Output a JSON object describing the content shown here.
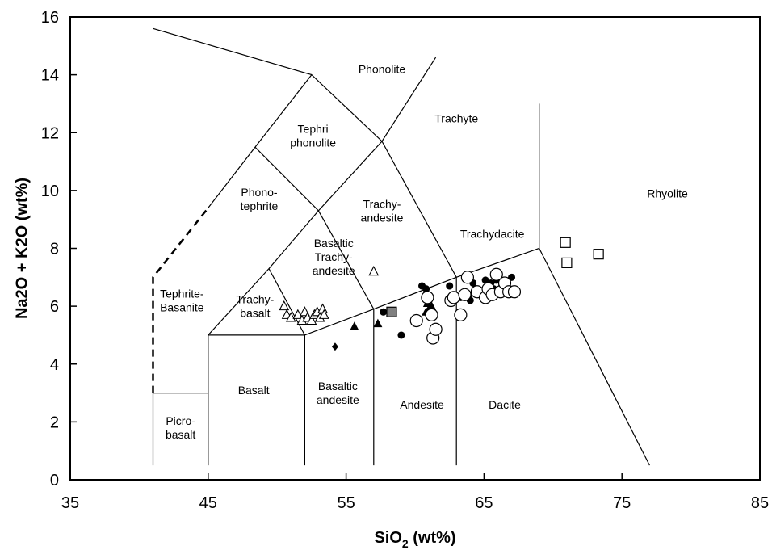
{
  "chart_data": {
    "type": "scatter",
    "xlabel": "SiO",
    "xlabel_sub": "2",
    "xlabel_suffix": " (wt%)",
    "ylabel": "Na2O + K2O (wt%)",
    "xlim": [
      35,
      85
    ],
    "ylim": [
      0,
      16
    ],
    "grid": false,
    "x_ticks": [
      35,
      45,
      55,
      65,
      75,
      85
    ],
    "y_ticks": [
      0,
      2,
      4,
      6,
      8,
      10,
      12,
      14,
      16
    ],
    "field_boundaries": [
      {
        "dashed": false,
        "points": [
          [
            41,
            0.5
          ],
          [
            41,
            3
          ],
          [
            45,
            3
          ]
        ]
      },
      {
        "dashed": true,
        "points": [
          [
            41,
            3
          ],
          [
            41,
            7
          ],
          [
            45,
            9.4
          ]
        ]
      },
      {
        "dashed": false,
        "points": [
          [
            45,
            9.4
          ],
          [
            48.4,
            11.5
          ],
          [
            52.5,
            14
          ],
          [
            57.6,
            11.7
          ],
          [
            63,
            7
          ],
          [
            69,
            8
          ],
          [
            69,
            13
          ]
        ]
      },
      {
        "dashed": false,
        "points": [
          [
            45,
            0.5
          ],
          [
            45,
            5
          ],
          [
            49.4,
            7.3
          ],
          [
            53,
            9.3
          ],
          [
            57.6,
            11.7
          ],
          [
            61.5,
            14.6
          ]
        ]
      },
      {
        "dashed": false,
        "points": [
          [
            45,
            5
          ],
          [
            52,
            5
          ],
          [
            57,
            5.9
          ],
          [
            63,
            7
          ]
        ]
      },
      {
        "dashed": false,
        "points": [
          [
            52,
            0.5
          ],
          [
            52,
            5
          ]
        ]
      },
      {
        "dashed": false,
        "points": [
          [
            57,
            0.5
          ],
          [
            57,
            5.9
          ]
        ]
      },
      {
        "dashed": false,
        "points": [
          [
            63,
            0.5
          ],
          [
            63,
            7
          ]
        ]
      },
      {
        "dashed": false,
        "points": [
          [
            49.4,
            7.3
          ],
          [
            52,
            5
          ]
        ]
      },
      {
        "dashed": false,
        "points": [
          [
            53,
            9.3
          ],
          [
            57,
            5.9
          ]
        ]
      },
      {
        "dashed": false,
        "points": [
          [
            48.4,
            11.5
          ],
          [
            53,
            9.3
          ]
        ]
      },
      {
        "dashed": false,
        "points": [
          [
            41,
            15.6
          ],
          [
            52.5,
            14
          ]
        ]
      },
      {
        "dashed": false,
        "points": [
          [
            69,
            8
          ],
          [
            77,
            0.5
          ]
        ]
      }
    ],
    "field_labels": [
      {
        "lines": [
          "Phonolite"
        ],
        "x": 57.6,
        "y": 14.2
      },
      {
        "lines": [
          "Trachyte"
        ],
        "x": 63,
        "y": 12.5
      },
      {
        "lines": [
          "Tephri",
          "phonolite"
        ],
        "x": 52.6,
        "y": 11.9
      },
      {
        "lines": [
          "Rhyolite"
        ],
        "x": 78.3,
        "y": 9.9
      },
      {
        "lines": [
          "Phono-",
          "tephrite"
        ],
        "x": 48.7,
        "y": 9.7
      },
      {
        "lines": [
          "Trachy-",
          "andesite"
        ],
        "x": 57.6,
        "y": 9.3
      },
      {
        "lines": [
          "Trachydacite"
        ],
        "x": 65.6,
        "y": 8.5
      },
      {
        "lines": [
          "Basaltic",
          "Trachy-",
          "andesite"
        ],
        "x": 54.1,
        "y": 7.7
      },
      {
        "lines": [
          "Tephrite-",
          "Basanite"
        ],
        "x": 43.1,
        "y": 6.2
      },
      {
        "lines": [
          "Trachy-",
          "basalt"
        ],
        "x": 48.4,
        "y": 6.0
      },
      {
        "lines": [
          "Basalt"
        ],
        "x": 48.3,
        "y": 3.1
      },
      {
        "lines": [
          "Basaltic",
          "andesite"
        ],
        "x": 54.4,
        "y": 3.0
      },
      {
        "lines": [
          "Andesite"
        ],
        "x": 60.5,
        "y": 2.6
      },
      {
        "lines": [
          "Dacite"
        ],
        "x": 66.5,
        "y": 2.6
      },
      {
        "lines": [
          "Picro-",
          "basalt"
        ],
        "x": 43,
        "y": 1.8
      }
    ],
    "series": [
      {
        "marker": "open-triangle",
        "points": [
          [
            50.5,
            6.0
          ],
          [
            50.7,
            5.7
          ],
          [
            51.0,
            5.6
          ],
          [
            51.5,
            5.7
          ],
          [
            51.8,
            5.5
          ],
          [
            52.0,
            5.8
          ],
          [
            52.2,
            5.6
          ],
          [
            52.5,
            5.5
          ],
          [
            52.7,
            5.7
          ],
          [
            52.9,
            5.8
          ],
          [
            53.1,
            5.6
          ],
          [
            53.3,
            5.9
          ],
          [
            53.4,
            5.7
          ],
          [
            57.0,
            7.2
          ]
        ]
      },
      {
        "marker": "filled-triangle",
        "points": [
          [
            55.6,
            5.3
          ],
          [
            57.3,
            5.4
          ],
          [
            60.8,
            5.8
          ],
          [
            60.9,
            6.1
          ],
          [
            61.0,
            5.9
          ],
          [
            61.2,
            6.0
          ]
        ]
      },
      {
        "marker": "filled-diamond",
        "points": [
          [
            54.2,
            4.6
          ]
        ]
      },
      {
        "marker": "filled-square",
        "points": [
          [
            58.3,
            5.8
          ]
        ]
      },
      {
        "marker": "open-square",
        "points": [
          [
            70.9,
            8.2
          ],
          [
            71.0,
            7.5
          ],
          [
            73.3,
            7.8
          ]
        ]
      },
      {
        "marker": "filled-circle",
        "points": [
          [
            57.7,
            5.8
          ],
          [
            59.0,
            5.0
          ],
          [
            60.5,
            6.7
          ],
          [
            60.8,
            6.6
          ],
          [
            62.5,
            6.7
          ],
          [
            63.3,
            6.3
          ],
          [
            63.9,
            6.4
          ],
          [
            64.2,
            6.8
          ],
          [
            64.4,
            6.6
          ],
          [
            65.2,
            6.5
          ],
          [
            65.5,
            6.8
          ],
          [
            65.7,
            6.6
          ],
          [
            65.9,
            6.9
          ],
          [
            66.3,
            6.7
          ],
          [
            66.6,
            6.6
          ],
          [
            67.0,
            7.0
          ],
          [
            64.0,
            6.2
          ],
          [
            65.1,
            6.9
          ]
        ]
      },
      {
        "marker": "open-circle",
        "points": [
          [
            60.1,
            5.5
          ],
          [
            60.9,
            6.3
          ],
          [
            61.2,
            5.7
          ],
          [
            61.3,
            4.9
          ],
          [
            61.5,
            5.2
          ],
          [
            62.6,
            6.2
          ],
          [
            62.8,
            6.3
          ],
          [
            63.3,
            5.7
          ],
          [
            63.6,
            6.4
          ],
          [
            63.8,
            7.0
          ],
          [
            64.5,
            6.5
          ],
          [
            65.1,
            6.3
          ],
          [
            65.3,
            6.6
          ],
          [
            65.6,
            6.4
          ],
          [
            65.9,
            7.1
          ],
          [
            66.2,
            6.5
          ],
          [
            66.5,
            6.8
          ],
          [
            66.8,
            6.5
          ],
          [
            67.2,
            6.5
          ]
        ]
      }
    ]
  }
}
